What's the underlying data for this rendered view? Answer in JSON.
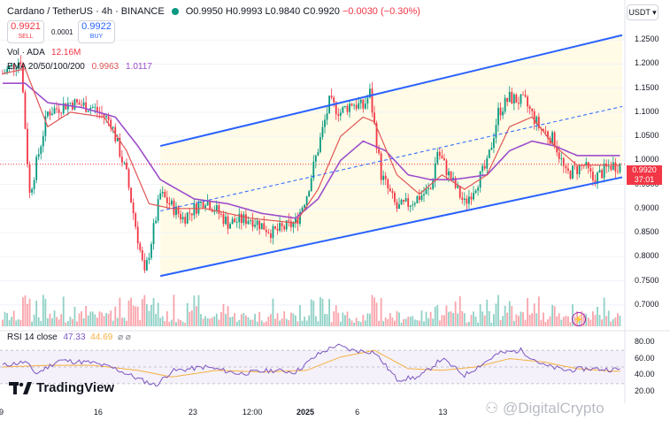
{
  "header": {
    "symbol": "Cardano / TetherUS · 4h · BINANCE",
    "open": "O0.9950",
    "high": "H0.9993",
    "low": "L0.9840",
    "close": "C0.9920",
    "change": "−0.0030 (−0.30%)"
  },
  "trade": {
    "sell_price": "0.9921",
    "sell_label": "SELL",
    "spread": "0.0001",
    "buy_price": "0.9922",
    "buy_label": "BUY"
  },
  "vol": {
    "label": "Vol · ADA",
    "value": "12.16M"
  },
  "ema": {
    "label": "EMA 20/50/100/200",
    "v1": "0.9963",
    "v2": "1.0117"
  },
  "currency": "USDT",
  "rsi": {
    "label": "RSI 14 close",
    "v1": "47.33",
    "v2": "44.69",
    "ticks": [
      "80.00",
      "60.00",
      "40.00",
      "20.00"
    ]
  },
  "brand": {
    "tradingview": "TradingView",
    "watermark": "@DigitalCrypto"
  },
  "colors": {
    "up": "#089981",
    "down": "#f23645",
    "channel": "#2962ff",
    "ema_fast": "#e05555",
    "ema_slow": "#9c4dcc",
    "rsi": "#7e57c2",
    "rsi_ma": "#f5b041"
  },
  "chart_data": {
    "type": "candlestick",
    "symbol": "ADA/USDT",
    "interval": "4h",
    "ylim": [
      0.65,
      1.3
    ],
    "y_ticks": [
      1.25,
      1.2,
      1.15,
      1.1,
      1.05,
      1.0,
      0.95,
      0.9,
      0.85,
      0.8,
      0.75,
      0.7
    ],
    "y_tick_labels": [
      "1.2500",
      "1.2000",
      "1.1500",
      "1.1000",
      "1.0500",
      "1.0000",
      "0.9500",
      "0.9000",
      "0.8500",
      "0.8000",
      "0.7500",
      "0.7000"
    ],
    "x_tick_labels": [
      "9",
      "16",
      "23",
      "12:00",
      "2025",
      "6",
      "13"
    ],
    "x_tick_bars": [
      0,
      42,
      84,
      108,
      132,
      158,
      195
    ],
    "last_price": "0.9920",
    "countdown": "37:01",
    "price_keypoints": [
      [
        0,
        1.18
      ],
      [
        8,
        1.21
      ],
      [
        12,
        0.93
      ],
      [
        20,
        1.1
      ],
      [
        30,
        1.12
      ],
      [
        40,
        1.11
      ],
      [
        48,
        1.08
      ],
      [
        55,
        0.97
      ],
      [
        63,
        0.76
      ],
      [
        70,
        0.93
      ],
      [
        80,
        0.88
      ],
      [
        90,
        0.92
      ],
      [
        100,
        0.87
      ],
      [
        110,
        0.88
      ],
      [
        120,
        0.85
      ],
      [
        130,
        0.87
      ],
      [
        135,
        0.93
      ],
      [
        145,
        1.12
      ],
      [
        150,
        1.1
      ],
      [
        155,
        1.12
      ],
      [
        160,
        1.11
      ],
      [
        163,
        1.14
      ],
      [
        168,
        0.97
      ],
      [
        175,
        0.9
      ],
      [
        180,
        0.91
      ],
      [
        190,
        0.94
      ],
      [
        193,
        1.02
      ],
      [
        198,
        0.97
      ],
      [
        205,
        0.91
      ],
      [
        215,
        0.99
      ],
      [
        220,
        1.1
      ],
      [
        225,
        1.13
      ],
      [
        232,
        1.12
      ],
      [
        238,
        1.07
      ],
      [
        245,
        1.04
      ],
      [
        250,
        0.97
      ],
      [
        258,
        0.99
      ],
      [
        262,
        0.96
      ],
      [
        270,
        0.99
      ]
    ],
    "ema_fast": [
      [
        0,
        1.18
      ],
      [
        10,
        1.19
      ],
      [
        20,
        1.07
      ],
      [
        30,
        1.1
      ],
      [
        45,
        1.09
      ],
      [
        55,
        1.02
      ],
      [
        65,
        0.91
      ],
      [
        75,
        0.9
      ],
      [
        90,
        0.9
      ],
      [
        110,
        0.88
      ],
      [
        130,
        0.87
      ],
      [
        140,
        0.94
      ],
      [
        150,
        1.05
      ],
      [
        160,
        1.09
      ],
      [
        165,
        1.08
      ],
      [
        175,
        0.97
      ],
      [
        185,
        0.93
      ],
      [
        195,
        0.97
      ],
      [
        205,
        0.94
      ],
      [
        215,
        0.97
      ],
      [
        225,
        1.07
      ],
      [
        235,
        1.09
      ],
      [
        245,
        1.03
      ],
      [
        255,
        0.99
      ],
      [
        270,
        0.99
      ]
    ],
    "ema_slow": [
      [
        0,
        1.16
      ],
      [
        10,
        1.16
      ],
      [
        20,
        1.12
      ],
      [
        35,
        1.11
      ],
      [
        50,
        1.09
      ],
      [
        60,
        1.03
      ],
      [
        70,
        0.96
      ],
      [
        85,
        0.92
      ],
      [
        100,
        0.91
      ],
      [
        115,
        0.89
      ],
      [
        130,
        0.88
      ],
      [
        140,
        0.92
      ],
      [
        150,
        1.0
      ],
      [
        160,
        1.04
      ],
      [
        170,
        1.02
      ],
      [
        180,
        0.97
      ],
      [
        190,
        0.96
      ],
      [
        200,
        0.96
      ],
      [
        215,
        0.97
      ],
      [
        225,
        1.02
      ],
      [
        235,
        1.04
      ],
      [
        245,
        1.03
      ],
      [
        255,
        1.01
      ],
      [
        270,
        1.01
      ]
    ],
    "channel": {
      "upper": [
        [
          70,
          1.03
        ],
        [
          275,
          1.26
        ]
      ],
      "lower": [
        [
          70,
          0.76
        ],
        [
          275,
          0.965
        ]
      ],
      "mid": [
        [
          70,
          0.895
        ],
        [
          275,
          1.112
        ]
      ]
    },
    "rsi_ylim": [
      15,
      85
    ],
    "rsi_band": [
      30,
      70
    ],
    "rsi_keypoints": [
      [
        0,
        52
      ],
      [
        10,
        56
      ],
      [
        15,
        42
      ],
      [
        25,
        58
      ],
      [
        40,
        55
      ],
      [
        50,
        48
      ],
      [
        60,
        36
      ],
      [
        68,
        28
      ],
      [
        75,
        45
      ],
      [
        90,
        50
      ],
      [
        105,
        42
      ],
      [
        120,
        46
      ],
      [
        130,
        44
      ],
      [
        140,
        65
      ],
      [
        148,
        76
      ],
      [
        155,
        70
      ],
      [
        165,
        68
      ],
      [
        175,
        35
      ],
      [
        185,
        38
      ],
      [
        195,
        60
      ],
      [
        205,
        40
      ],
      [
        220,
        66
      ],
      [
        230,
        70
      ],
      [
        240,
        52
      ],
      [
        250,
        46
      ],
      [
        260,
        48
      ],
      [
        270,
        47
      ]
    ],
    "rsi_ma_keypoints": [
      [
        0,
        50
      ],
      [
        20,
        52
      ],
      [
        40,
        52
      ],
      [
        60,
        46
      ],
      [
        75,
        38
      ],
      [
        95,
        46
      ],
      [
        115,
        44
      ],
      [
        135,
        46
      ],
      [
        150,
        62
      ],
      [
        165,
        70
      ],
      [
        180,
        48
      ],
      [
        195,
        46
      ],
      [
        210,
        50
      ],
      [
        225,
        60
      ],
      [
        240,
        56
      ],
      [
        255,
        48
      ],
      [
        270,
        45
      ]
    ]
  }
}
